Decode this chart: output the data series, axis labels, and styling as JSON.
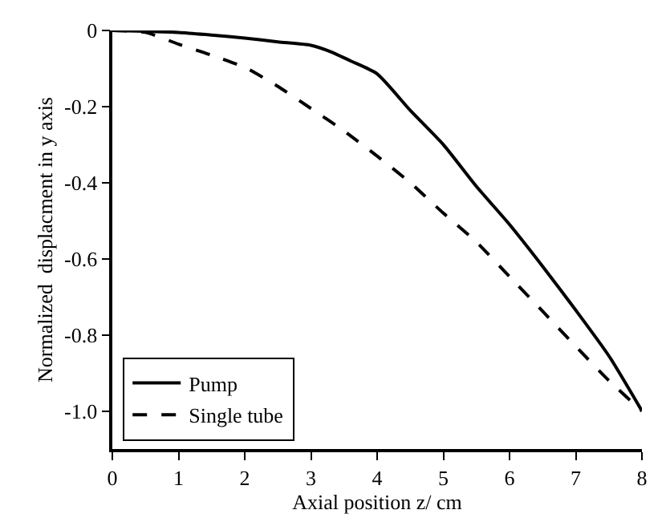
{
  "chart_data": {
    "type": "line",
    "xlabel": "Axial position z/ cm",
    "ylabel": "Normalized  displacment in y axis",
    "xlim": [
      0,
      8
    ],
    "xticks": [
      0,
      1,
      2,
      3,
      4,
      5,
      6,
      7,
      8
    ],
    "ylim": [
      -1.1,
      0
    ],
    "yticks": [
      {
        "value": 0,
        "label": "0"
      },
      {
        "value": -0.2,
        "label": "-0.2"
      },
      {
        "value": -0.4,
        "label": "-0.4"
      },
      {
        "value": -0.6,
        "label": "-0.6"
      },
      {
        "value": -0.8,
        "label": "-0.8"
      },
      {
        "value": -1.0,
        "label": "-1.0"
      }
    ],
    "legend": "bottom left",
    "marker": "none",
    "series": [
      {
        "name": "Pump",
        "color": "#000000",
        "line_style": "solid",
        "x": [
          0,
          0.5,
          1,
          1.5,
          2,
          2.5,
          3,
          3.3,
          3.6,
          4,
          4.5,
          5,
          5.5,
          6,
          6.5,
          7,
          7.5,
          8
        ],
        "values": [
          0,
          -0.002,
          -0.005,
          -0.012,
          -0.02,
          -0.03,
          -0.039,
          -0.056,
          -0.08,
          -0.114,
          -0.21,
          -0.3,
          -0.41,
          -0.51,
          -0.62,
          -0.735,
          -0.855,
          -1.0
        ]
      },
      {
        "name": "Single tube",
        "color": "#000000",
        "line_style": "dashed",
        "x": [
          0,
          0.5,
          1,
          1.5,
          2,
          2.5,
          3,
          3.5,
          4,
          4.5,
          5,
          5.5,
          6,
          6.5,
          7,
          7.5,
          8
        ],
        "values": [
          0,
          -0.005,
          -0.036,
          -0.065,
          -0.097,
          -0.147,
          -0.205,
          -0.264,
          -0.33,
          -0.4,
          -0.48,
          -0.556,
          -0.647,
          -0.738,
          -0.83,
          -0.92,
          -1.0
        ]
      }
    ]
  }
}
